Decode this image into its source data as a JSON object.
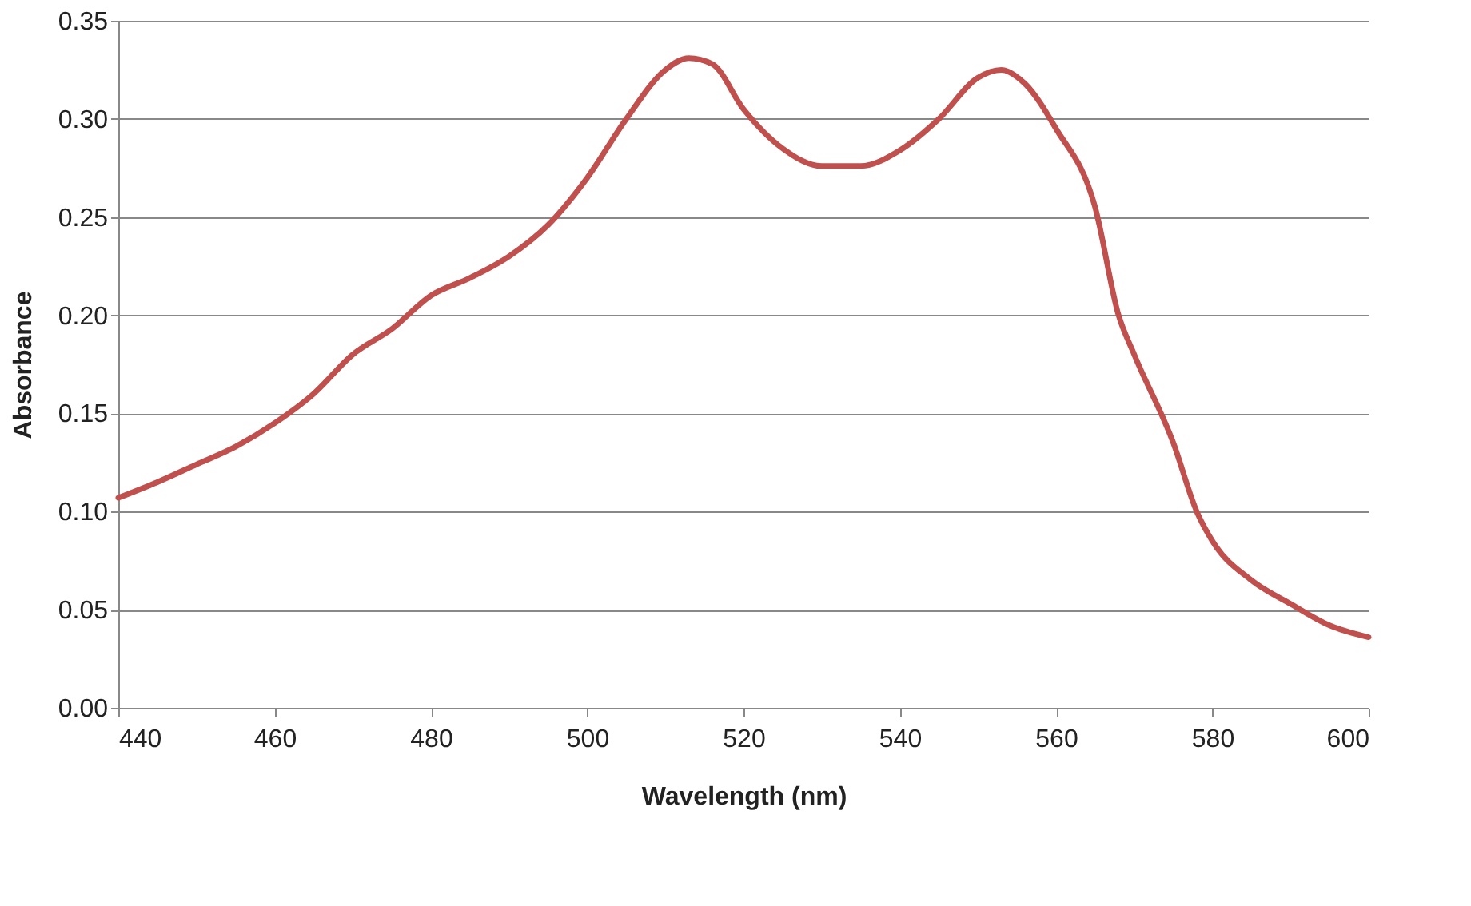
{
  "chart_data": {
    "type": "line",
    "xlabel": "Wavelength (nm)",
    "ylabel": "Absorbance",
    "x": [
      440,
      445,
      450,
      455,
      460,
      465,
      470,
      475,
      480,
      485,
      490,
      495,
      500,
      505,
      510,
      513,
      516,
      520,
      525,
      530,
      535,
      540,
      545,
      550,
      553,
      556,
      560,
      565,
      568,
      570,
      575,
      578,
      580,
      585,
      590,
      595,
      600
    ],
    "series": [
      {
        "color": "#c0504d",
        "values": [
          0.107,
          0.115,
          0.124,
          0.133,
          0.145,
          0.16,
          0.18,
          0.193,
          0.21,
          0.219,
          0.23,
          0.246,
          0.27,
          0.3,
          0.325,
          0.331,
          0.328,
          0.305,
          0.285,
          0.276,
          0.276,
          0.284,
          0.3,
          0.321,
          0.325,
          0.318,
          0.295,
          0.255,
          0.2,
          0.18,
          0.135,
          0.1,
          0.085,
          0.065,
          0.053,
          0.042,
          0.036
        ]
      }
    ],
    "xlim": [
      440,
      600
    ],
    "xticks": [
      440,
      460,
      480,
      500,
      520,
      540,
      560,
      580,
      600
    ],
    "ylim": [
      0,
      0.35
    ],
    "yticks": [
      {
        "value": 0,
        "label": "0.00"
      },
      {
        "value": 0.05,
        "label": "0.05"
      },
      {
        "value": 0.1,
        "label": "0.10"
      },
      {
        "value": 0.15,
        "label": "0.15"
      },
      {
        "value": 0.2,
        "label": "0.20"
      },
      {
        "value": 0.25,
        "label": "0.25"
      },
      {
        "value": 0.3,
        "label": "0.30"
      },
      {
        "value": 0.35,
        "label": "0.35"
      }
    ],
    "grid": "y",
    "legend": false,
    "marker": "none",
    "line_style": "solid"
  }
}
